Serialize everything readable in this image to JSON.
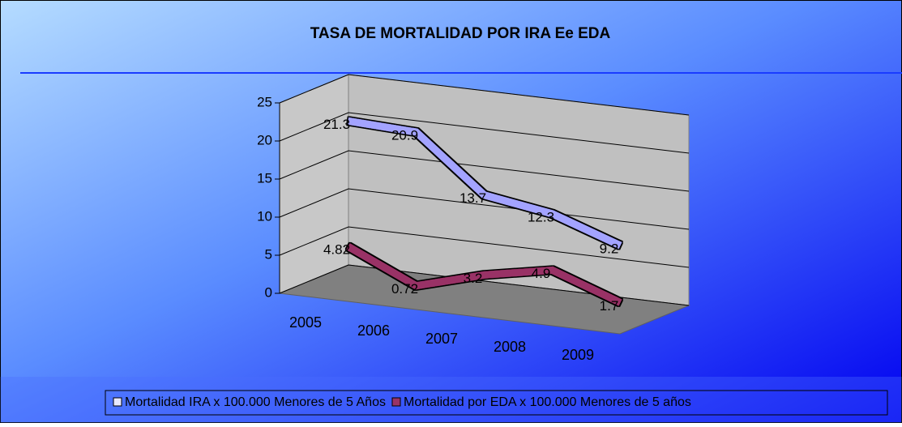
{
  "chart_data": {
    "type": "line3d",
    "title": "TASA DE MORTALIDAD POR IRA Ee EDA",
    "categories": [
      "2005",
      "2006",
      "2007",
      "2008",
      "2009"
    ],
    "series": [
      {
        "name": "Mortalidad IRA x 100.000 Menores de 5 Años",
        "color": "#a3a3ff",
        "values": [
          21.3,
          20.9,
          13.7,
          12.3,
          9.2
        ]
      },
      {
        "name": "Mortalidad por EDA x 100.000 Menores de 5 años",
        "color": "#993366",
        "values": [
          4.82,
          0.72,
          3.2,
          4.9,
          1.7
        ]
      }
    ],
    "ylim": [
      0,
      25
    ],
    "yticks": [
      0,
      5,
      10,
      15,
      20,
      25
    ],
    "grid": true,
    "legend": "bottom"
  }
}
